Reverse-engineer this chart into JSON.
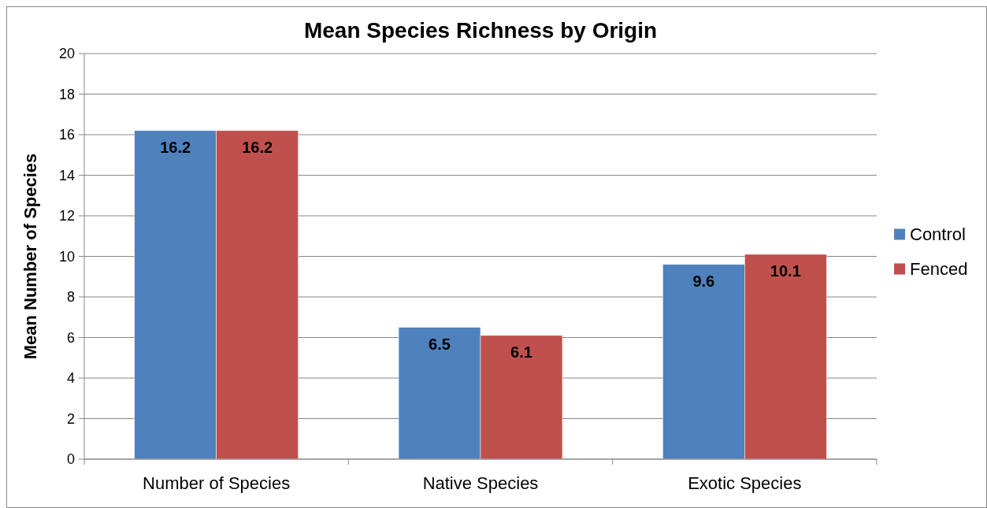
{
  "chart_data": {
    "type": "bar",
    "title": "Mean Species Richness by Origin",
    "ylabel": "Mean Number of Species",
    "categories": [
      "Number of Species",
      "Native Species",
      "Exotic Species"
    ],
    "series": [
      {
        "name": "Control",
        "color": "#4f81bd",
        "values": [
          16.2,
          6.5,
          9.6
        ]
      },
      {
        "name": "Fenced",
        "color": "#c0504d",
        "values": [
          16.2,
          6.1,
          10.1
        ]
      }
    ],
    "ylim": [
      0,
      20
    ],
    "yticks": [
      0,
      2,
      4,
      6,
      8,
      10,
      12,
      14,
      16,
      18,
      20
    ],
    "grid": "y",
    "legend": "right",
    "data_labels": true
  }
}
